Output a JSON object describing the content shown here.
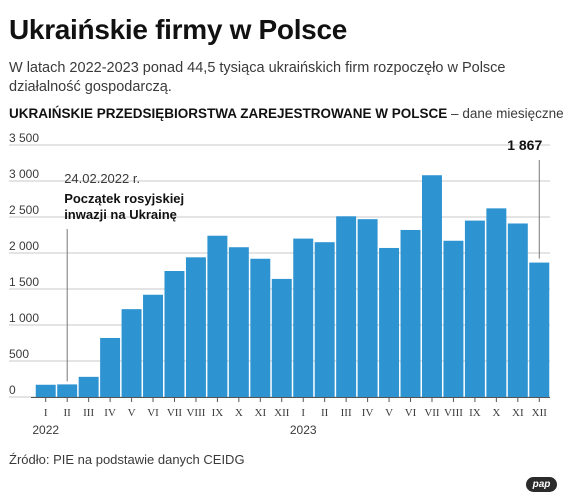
{
  "title": "Ukraińskie firmy w Polsce",
  "subtitle": "W latach 2022-2023 ponad 44,5 tysiąca ukraińskich firm rozpoczęło w Polsce działalność gospodarczą.",
  "chart_heading": {
    "main": "UKRAIŃSKIE PRZEDSIĘBIORSTWA ZAREJESTROWANE W POLSCE",
    "separator": " – ",
    "note": "dane miesięczne"
  },
  "source": "Źródło: PIE na podstawie danych CEIDG",
  "logo": "pap",
  "colors": {
    "bar": "#2e93d1",
    "grid": "#c8c8c8",
    "text": "#3a3a3a"
  },
  "chart_data": {
    "type": "bar",
    "categories": [
      "I",
      "II",
      "III",
      "IV",
      "V",
      "VI",
      "VII",
      "VIII",
      "IX",
      "X",
      "XI",
      "XII",
      "I",
      "II",
      "III",
      "IV",
      "V",
      "VI",
      "VII",
      "VIII",
      "IX",
      "X",
      "XI",
      "XII"
    ],
    "year_labels": [
      {
        "label": "2022",
        "index": 0
      },
      {
        "label": "2023",
        "index": 12
      }
    ],
    "values": [
      170,
      175,
      280,
      820,
      1220,
      1420,
      1750,
      1940,
      2240,
      2080,
      1920,
      1640,
      2200,
      2150,
      2510,
      2470,
      2070,
      2320,
      3080,
      2170,
      2450,
      2620,
      2410,
      1867
    ],
    "ylim": [
      0,
      3500
    ],
    "yticks": [
      0,
      500,
      1000,
      1500,
      2000,
      2500,
      3000,
      3500
    ],
    "ytick_labels": [
      "0",
      "500",
      "1 000",
      "1 500",
      "2 000",
      "2 500",
      "3 000",
      "3 500"
    ],
    "grid": true,
    "annotations": [
      {
        "index": 1,
        "lines": [
          "24.02.2022 r.",
          "Początek rosyjskiej",
          "inwazji na Ukrainę"
        ],
        "bold_from": 1
      },
      {
        "index": 23,
        "lines": [
          "1 867"
        ],
        "bold_from": 0
      }
    ]
  }
}
